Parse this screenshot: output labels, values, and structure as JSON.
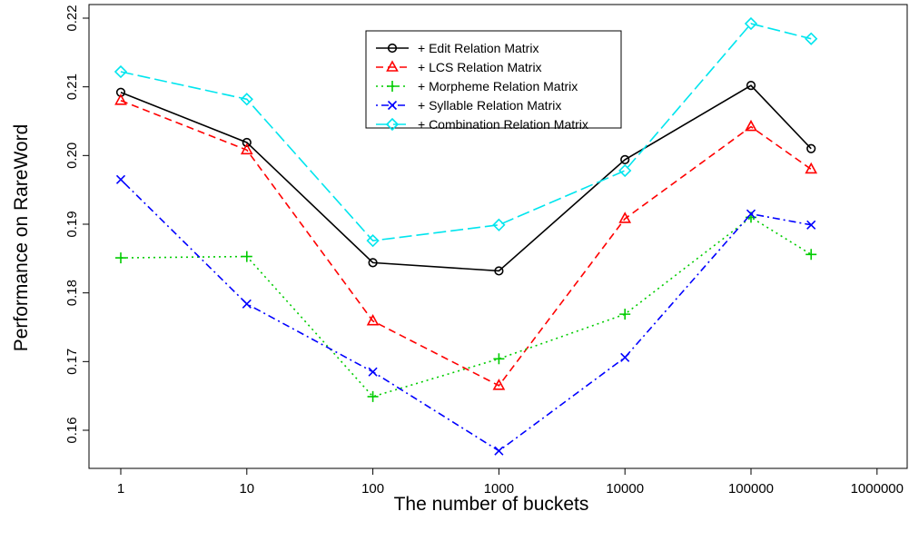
{
  "chart_data": {
    "type": "line",
    "xlabel": "The number of buckets",
    "ylabel": "Performance on RareWord",
    "x_scale": "log",
    "xlim": [
      1,
      1000000
    ],
    "x_ticks": [
      "1",
      "10",
      "100",
      "1000",
      "10000",
      "100000",
      "1000000"
    ],
    "x_tick_values": [
      1,
      10,
      100,
      1000,
      10000,
      100000,
      1000000
    ],
    "ylim": [
      0.15,
      0.22
    ],
    "y_ticks": [
      "0.16",
      "0.17",
      "0.18",
      "0.19",
      "0.20",
      "0.21",
      "0.22"
    ],
    "y_tick_values": [
      0.16,
      0.17,
      0.18,
      0.19,
      0.2,
      0.21,
      0.22
    ],
    "grid": false,
    "legend_position": "top-center",
    "x": [
      1,
      10,
      100,
      1000,
      10000,
      100000,
      300000
    ],
    "series": [
      {
        "name": "+ Edit Relation Matrix",
        "color": "#000000",
        "dash": "solid",
        "marker": "circle",
        "values": [
          0.2092,
          0.2019,
          0.1844,
          0.1832,
          0.1994,
          0.2102,
          0.201
        ]
      },
      {
        "name": "+ LCS Relation Matrix",
        "color": "#ff0000",
        "dash": "dashed",
        "marker": "triangle",
        "values": [
          0.208,
          0.2008,
          0.1759,
          0.1665,
          0.1908,
          0.2042,
          0.198
        ]
      },
      {
        "name": "+ Morpheme Relation Matrix",
        "color": "#00cc00",
        "dash": "dotted",
        "marker": "plus",
        "values": [
          0.1851,
          0.1853,
          0.1649,
          0.1704,
          0.1769,
          0.191,
          0.1856
        ]
      },
      {
        "name": "+ Syllable Relation Matrix",
        "color": "#0000ff",
        "dash": "dotdash",
        "marker": "cross",
        "values": [
          0.1965,
          0.1784,
          0.1685,
          0.157,
          0.1706,
          0.1915,
          0.1899
        ]
      },
      {
        "name": "+ Combination Relation Matrix",
        "color": "#00e5ee",
        "dash": "longdash",
        "marker": "diamond",
        "values": [
          0.2122,
          0.2082,
          0.1876,
          0.1899,
          0.1978,
          0.2192,
          0.217
        ]
      }
    ]
  }
}
